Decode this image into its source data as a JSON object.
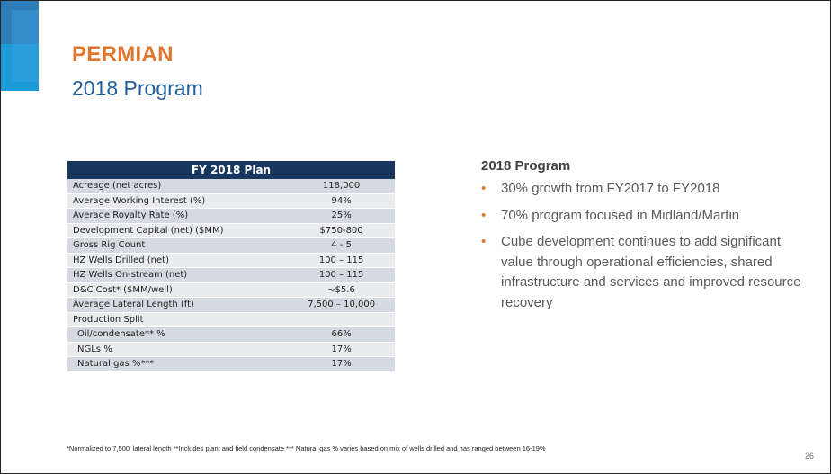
{
  "header": {
    "title": "PERMIAN",
    "subtitle": "2018 Program"
  },
  "table": {
    "heading": "FY 2018 Plan",
    "rows": [
      {
        "label": "Acreage (net acres)",
        "value": "118,000"
      },
      {
        "label": "Average Working Interest (%)",
        "value": "94%"
      },
      {
        "label": "Average Royalty Rate (%)",
        "value": "25%"
      },
      {
        "label": "Development Capital (net) ($MM)",
        "value": "$750-800"
      },
      {
        "label": "Gross Rig Count",
        "value": "4 - 5"
      },
      {
        "label": "HZ Wells Drilled (net)",
        "value": "100 – 115"
      },
      {
        "label": "HZ Wells On-stream (net)",
        "value": "100 – 115"
      },
      {
        "label": "D&C Cost* ($MM/well)",
        "value": "~$5.6"
      },
      {
        "label": "Average Lateral Length (ft)",
        "value": "7,500 – 10,000"
      },
      {
        "label": "Production Split",
        "value": ""
      },
      {
        "label": "Oil/condensate** %",
        "value": "66%"
      },
      {
        "label": "NGLs %",
        "value": "17%"
      },
      {
        "label": "Natural gas %***",
        "value": "17%"
      }
    ]
  },
  "program": {
    "title": "2018 Program",
    "bullet_glyph": "•",
    "bullets": [
      "30% growth from FY2017 to FY2018",
      "70% program focused in Midland/Martin",
      "Cube development continues to add significant value through operational efficiencies, shared infrastructure and services and improved resource recovery"
    ]
  },
  "footnote": "*Normalized to 7,500' lateral length **Includes plant and field condensate *** Natural gas % varies based on mix of wells drilled and has ranged between 16-19%",
  "page_number": "26",
  "colors": {
    "title": "#e0752d",
    "subtitle": "#1f5f99",
    "table_header": "#17375e",
    "accent_bar": "#1a9ad6"
  }
}
